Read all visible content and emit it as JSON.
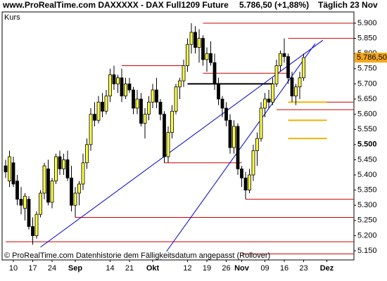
{
  "chart_data": {
    "type": "candlestick",
    "title": "www.ProRealTime.com DAXXXXX - DAX Full1209 Future",
    "subtitle": "5.786,50 (+1,88%)",
    "period": "Täglich  23 Nov",
    "panel_label": "Kurs",
    "footer": "© ProRealTime.com Datenhistorie dem Fälligkeitsdatum angepasst (Rollover)",
    "categories": [
      null,
      null,
      "10",
      null,
      null,
      null,
      null,
      "17",
      null,
      null,
      null,
      null,
      "24",
      null,
      null,
      null,
      null,
      null,
      "Sep",
      null,
      null,
      null,
      null,
      null,
      null,
      null,
      null,
      "14",
      null,
      null,
      null,
      null,
      "21",
      null,
      null,
      null,
      null,
      null,
      "Okt",
      null,
      null,
      null,
      null,
      null,
      null,
      null,
      null,
      "12",
      null,
      null,
      null,
      null,
      "19",
      null,
      null,
      null,
      null,
      "26",
      null,
      null,
      null,
      "Nov",
      null,
      null,
      null,
      null,
      null,
      "09",
      null,
      null,
      null,
      null,
      "16",
      null,
      null,
      null,
      null,
      "23",
      null,
      null,
      null,
      null,
      null,
      "Dez"
    ],
    "open": [
      5430,
      5380,
      5440,
      5380,
      5320,
      5290,
      5320,
      5230,
      5200,
      5270,
      5340,
      5420,
      5310,
      5380,
      5460,
      5420,
      5450,
      5390,
      5300,
      5340,
      5370,
      5440,
      5500,
      5600,
      5580,
      5640,
      5610,
      5660,
      5730,
      5700,
      5720,
      5660,
      5700,
      5680,
      5620,
      5650,
      5570,
      5600,
      5640,
      5680,
      5640,
      5600,
      5460,
      5540,
      5610,
      5690,
      5710,
      5760,
      5830,
      5870,
      5820,
      5850,
      5780,
      5800,
      5770,
      5700,
      5650,
      5620,
      5580,
      5490,
      5560,
      5420,
      5390,
      5350,
      5400,
      5480,
      5520,
      5620,
      5650,
      5640,
      5700,
      5760,
      5800,
      5790,
      5720,
      5660,
      5690,
      5720,
      null,
      null,
      null,
      null,
      null,
      null
    ],
    "high": [
      5450,
      5480,
      5460,
      5400,
      5360,
      5340,
      5330,
      5260,
      5280,
      5350,
      5440,
      5450,
      5390,
      5470,
      5480,
      5470,
      5480,
      5430,
      5360,
      5380,
      5470,
      5520,
      5620,
      5640,
      5660,
      5670,
      5680,
      5750,
      5760,
      5730,
      5750,
      5720,
      5720,
      5690,
      5680,
      5670,
      5620,
      5660,
      5700,
      5720,
      5650,
      5610,
      5560,
      5630,
      5700,
      5720,
      5780,
      5850,
      5900,
      5890,
      5880,
      5860,
      5820,
      5840,
      5800,
      5720,
      5660,
      5640,
      5600,
      5580,
      5570,
      5430,
      5410,
      5420,
      5500,
      5540,
      5640,
      5670,
      5680,
      5720,
      5780,
      5810,
      5850,
      5800,
      5740,
      5700,
      5740,
      5800,
      null,
      null,
      null,
      null,
      null,
      null
    ],
    "low": [
      5390,
      5360,
      5360,
      5300,
      5270,
      5250,
      5220,
      5170,
      5190,
      5260,
      5320,
      5300,
      5290,
      5370,
      5400,
      5400,
      5380,
      5280,
      5260,
      5300,
      5350,
      5420,
      5480,
      5560,
      5570,
      5590,
      5600,
      5640,
      5680,
      5670,
      5640,
      5650,
      5670,
      5600,
      5600,
      5560,
      5520,
      5580,
      5620,
      5620,
      5580,
      5440,
      5440,
      5520,
      5600,
      5650,
      5690,
      5740,
      5800,
      5800,
      5770,
      5760,
      5740,
      5760,
      5680,
      5630,
      5590,
      5560,
      5470,
      5470,
      5400,
      5360,
      5320,
      5340,
      5380,
      5430,
      5510,
      5590,
      5620,
      5630,
      5690,
      5740,
      5770,
      5700,
      5640,
      5630,
      5650,
      5710,
      null,
      null,
      null,
      null,
      null,
      null
    ],
    "close": [
      5410,
      5460,
      5370,
      5320,
      5300,
      5330,
      5230,
      5200,
      5270,
      5340,
      5430,
      5310,
      5380,
      5460,
      5420,
      5450,
      5390,
      5300,
      5340,
      5370,
      5440,
      5500,
      5600,
      5580,
      5640,
      5610,
      5660,
      5730,
      5700,
      5720,
      5660,
      5700,
      5680,
      5620,
      5650,
      5570,
      5600,
      5640,
      5680,
      5640,
      5600,
      5460,
      5540,
      5610,
      5690,
      5710,
      5760,
      5830,
      5870,
      5820,
      5850,
      5780,
      5800,
      5770,
      5700,
      5650,
      5620,
      5580,
      5490,
      5560,
      5420,
      5390,
      5350,
      5400,
      5480,
      5520,
      5620,
      5650,
      5640,
      5700,
      5760,
      5800,
      5790,
      5720,
      5660,
      5690,
      5720,
      5786.5,
      null,
      null,
      null,
      null,
      null,
      null
    ],
    "up_color": "#ffff40",
    "down_color": "#000000",
    "last_price": {
      "value": 5786.5,
      "label": "5.786,50"
    },
    "last_price_color": "#f6a81c",
    "ylim": [
      5120,
      5937
    ],
    "yticks": [
      {
        "value": 5150,
        "label": "5.150"
      },
      {
        "value": 5200,
        "label": "5.200"
      },
      {
        "value": 5250,
        "label": "5.250"
      },
      {
        "value": 5300,
        "label": "5.300"
      },
      {
        "value": 5350,
        "label": "5.350"
      },
      {
        "value": 5400,
        "label": "5.400"
      },
      {
        "value": 5450,
        "label": "5.450"
      },
      {
        "value": 5500,
        "label": "5.500"
      },
      {
        "value": 5550,
        "label": "5.550"
      },
      {
        "value": 5600,
        "label": "5.600"
      },
      {
        "value": 5650,
        "label": "5.650"
      },
      {
        "value": 5700,
        "label": "5.700"
      },
      {
        "value": 5750,
        "label": "5.750"
      },
      {
        "value": 5800,
        "label": "5.800"
      },
      {
        "value": 5850,
        "label": "5.850"
      },
      {
        "value": 5900,
        "label": "5.900"
      }
    ],
    "levels": [
      {
        "value": 5900,
        "start": 51,
        "color": "#cc0000"
      },
      {
        "value": 5850,
        "start": 73,
        "color": "#cc0000"
      },
      {
        "value": 5760,
        "start": 30,
        "end": 46,
        "color": "#cc0000"
      },
      {
        "value": 5735,
        "start": 51,
        "end": 73,
        "color": "#cc0000"
      },
      {
        "value": 5640,
        "start": 74,
        "color": "#cc0000"
      },
      {
        "value": 5615,
        "start": 70,
        "color": "#cc0000"
      },
      {
        "value": 5440,
        "start": 41,
        "end": 61,
        "color": "#cc0000"
      },
      {
        "value": 5320,
        "start": 62,
        "color": "#cc0000"
      },
      {
        "value": 5260,
        "start": 18,
        "color": "#cc0000"
      },
      {
        "value": 5180,
        "start": 0,
        "color": "#cc0000"
      },
      {
        "value": 5140,
        "start": 0,
        "color": "#cc0000"
      },
      {
        "value": 5700,
        "start": 47,
        "end": 69,
        "color": "#000000"
      },
      {
        "value": 5640,
        "start": 73,
        "end": 83,
        "color": "#f0b400"
      },
      {
        "value": 5580,
        "start": 73,
        "end": 83,
        "color": "#f0b400"
      },
      {
        "value": 5520,
        "start": 73,
        "end": 83,
        "color": "#f0b400"
      }
    ],
    "trendlines": [
      {
        "start": [
          9,
          5162
        ],
        "end": [
          82,
          5844
        ],
        "color": "#0000cc"
      },
      {
        "start": [
          40,
          5120
        ],
        "end": [
          80,
          5833
        ],
        "color": "#0000cc"
      }
    ]
  }
}
